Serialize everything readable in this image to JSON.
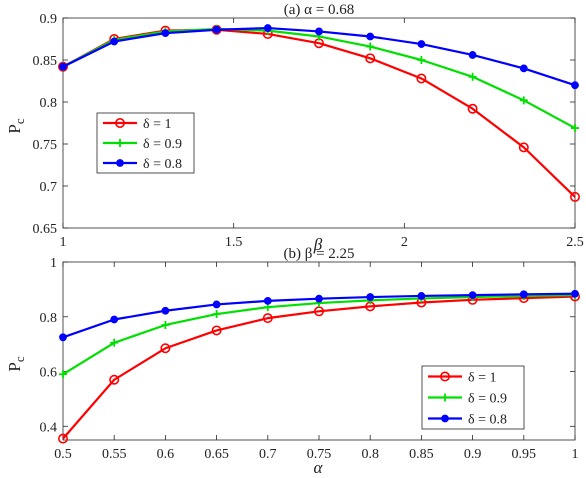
{
  "chart_data": [
    {
      "type": "line",
      "title": "(a) α = 0.68",
      "xlabel": "β",
      "ylabel": "Pc",
      "xlim": [
        1,
        2.5
      ],
      "ylim": [
        0.65,
        0.9
      ],
      "xticks": [
        "1",
        "1.5",
        "2",
        "2.5"
      ],
      "yticks": [
        "0.65",
        "0.7",
        "0.75",
        "0.8",
        "0.85",
        "0.9"
      ],
      "x": [
        1,
        1.15,
        1.3,
        1.45,
        1.6,
        1.75,
        1.9,
        2.05,
        2.2,
        2.35,
        2.5
      ],
      "legend_position": "bottom-left",
      "grid": false,
      "series": [
        {
          "name": "δ = 1",
          "color": "#ff0000",
          "marker": "circle-open",
          "values": [
            0.842,
            0.875,
            0.885,
            0.886,
            0.881,
            0.87,
            0.852,
            0.828,
            0.792,
            0.746,
            0.687
          ]
        },
        {
          "name": "δ = 0.9",
          "color": "#00e000",
          "marker": "plus",
          "values": [
            0.842,
            0.874,
            0.884,
            0.887,
            0.885,
            0.878,
            0.866,
            0.85,
            0.83,
            0.802,
            0.769
          ]
        },
        {
          "name": "δ = 0.8",
          "color": "#0000ff",
          "marker": "dot-filled",
          "values": [
            0.842,
            0.872,
            0.882,
            0.886,
            0.888,
            0.884,
            0.878,
            0.869,
            0.856,
            0.84,
            0.82
          ]
        }
      ]
    },
    {
      "type": "line",
      "title": "(b) β = 2.25",
      "xlabel": "α",
      "ylabel": "Pc",
      "xlim": [
        0.5,
        1
      ],
      "ylim": [
        0.35,
        1
      ],
      "xticks": [
        "0.5",
        "0.55",
        "0.6",
        "0.65",
        "0.7",
        "0.75",
        "0.8",
        "0.85",
        "0.9",
        "0.95",
        "1"
      ],
      "yticks": [
        "0.4",
        "0.6",
        "0.8",
        "1"
      ],
      "x": [
        0.5,
        0.55,
        0.6,
        0.65,
        0.7,
        0.75,
        0.8,
        0.85,
        0.9,
        0.95,
        1
      ],
      "legend_position": "bottom-right",
      "grid": false,
      "series": [
        {
          "name": "δ = 1",
          "color": "#ff0000",
          "marker": "circle-open",
          "values": [
            0.355,
            0.57,
            0.685,
            0.75,
            0.795,
            0.82,
            0.838,
            0.852,
            0.862,
            0.868,
            0.874
          ]
        },
        {
          "name": "δ = 0.9",
          "color": "#00e000",
          "marker": "plus",
          "values": [
            0.59,
            0.705,
            0.77,
            0.81,
            0.835,
            0.85,
            0.86,
            0.867,
            0.872,
            0.876,
            0.879
          ]
        },
        {
          "name": "δ = 0.8",
          "color": "#0000ff",
          "marker": "dot-filled",
          "values": [
            0.725,
            0.79,
            0.822,
            0.845,
            0.858,
            0.866,
            0.872,
            0.876,
            0.879,
            0.882,
            0.884
          ]
        }
      ]
    }
  ]
}
